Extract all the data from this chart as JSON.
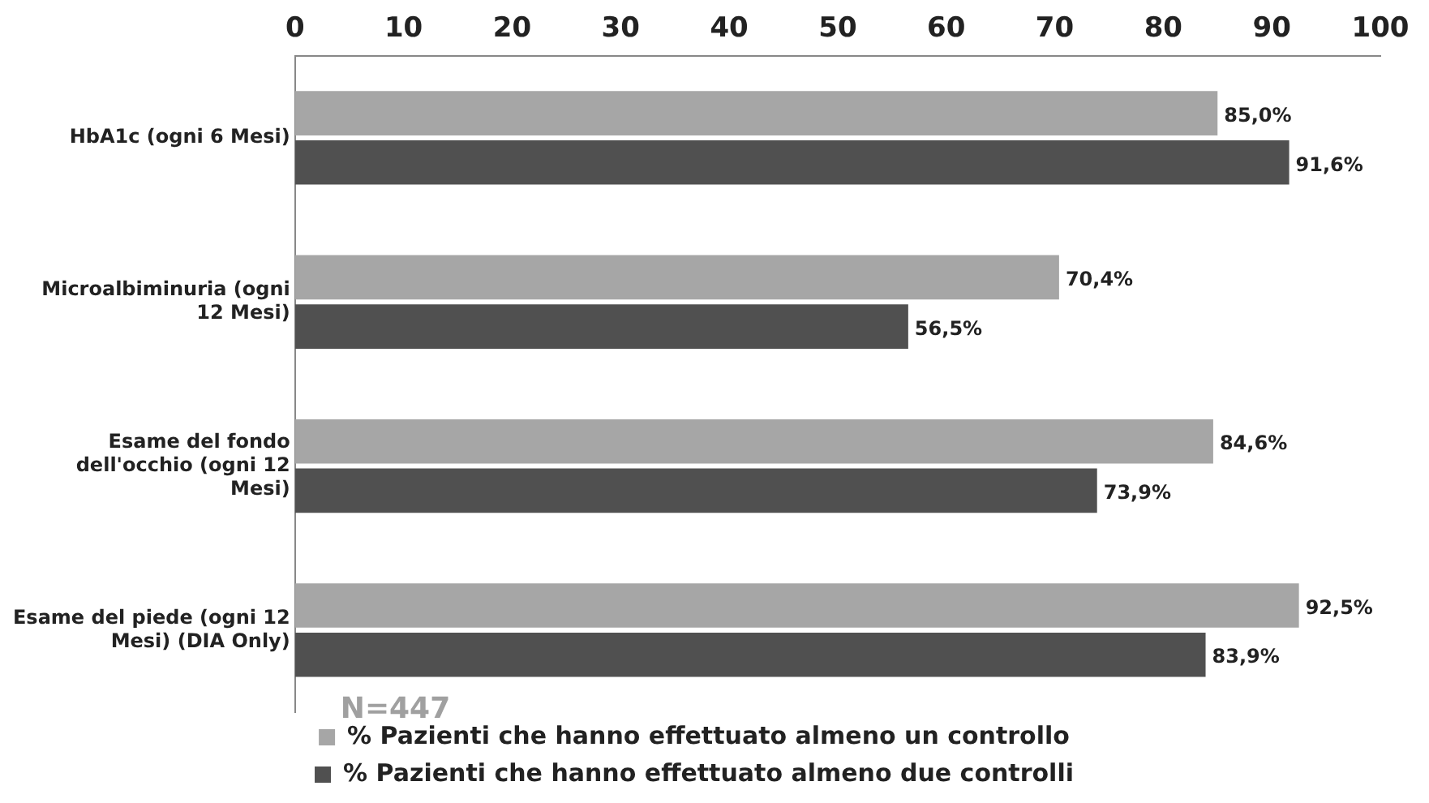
{
  "chart_data": {
    "type": "bar",
    "orientation": "horizontal",
    "categories": [
      "HbA1c (ogni 6 Mesi)",
      "Microalbiminuria (ogni 12 Mesi)",
      "Esame del fondo dell'occhio (ogni 12 Mesi)",
      "Esame del piede (ogni 12 Mesi) (DIA Only)"
    ],
    "series": [
      {
        "name": "% Pazienti che hanno effettuato almeno un controllo",
        "color": "#a6a6a6",
        "values": [
          85.0,
          70.4,
          84.6,
          92.5
        ],
        "value_labels": [
          "85,0%",
          "70,4%",
          "84,6%",
          "92,5%"
        ]
      },
      {
        "name": "% Pazienti che hanno effettuato almeno due controlli",
        "color": "#505050",
        "values": [
          91.6,
          56.5,
          73.9,
          83.9
        ],
        "value_labels": [
          "91,6%",
          "56,5%",
          "73,9%",
          "83,9%"
        ]
      }
    ],
    "xlim": [
      0,
      100
    ],
    "xticks": [
      0,
      10,
      20,
      30,
      40,
      50,
      60,
      70,
      80,
      90,
      100
    ],
    "grid": false,
    "legend": "bottom",
    "annotations": [
      "N=447"
    ]
  }
}
